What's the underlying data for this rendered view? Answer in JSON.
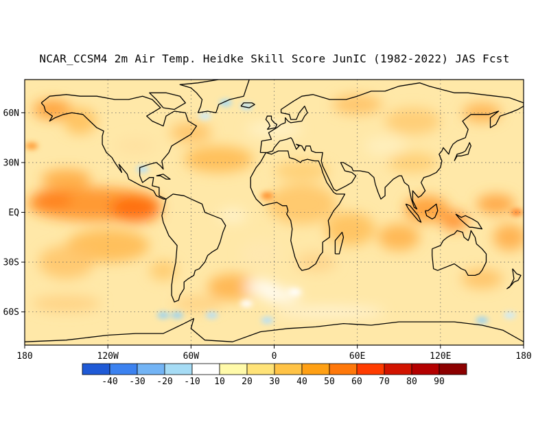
{
  "title": "NCAR_CCSM4 2m Air Temp. Heidke Skill Score JunIC (1982-2022) JAS Fcst",
  "axes": {
    "x_ticks": [
      "180",
      "120W",
      "60W",
      "0",
      "60E",
      "120E",
      "180"
    ],
    "y_ticks": [
      "60N",
      "30N",
      "EQ",
      "30S",
      "60S"
    ]
  },
  "colorbar": {
    "labels": [
      "-40",
      "-30",
      "-20",
      "-10",
      "10",
      "20",
      "30",
      "40",
      "50",
      "60",
      "70",
      "80",
      "90"
    ],
    "colors": [
      "#1f5ad6",
      "#3c82f0",
      "#73b4f5",
      "#a6dcf5",
      "#ffffff",
      "#fffaaa",
      "#ffe378",
      "#ffc346",
      "#ffa014",
      "#ff780a",
      "#ff3c00",
      "#d21400",
      "#b40000",
      "#8c0000"
    ]
  },
  "map": {
    "projection": "equirectangular",
    "lon_range": [
      -180,
      180
    ],
    "lat_range": [
      -80,
      80
    ],
    "grid": "dotted 30-degree"
  }
}
